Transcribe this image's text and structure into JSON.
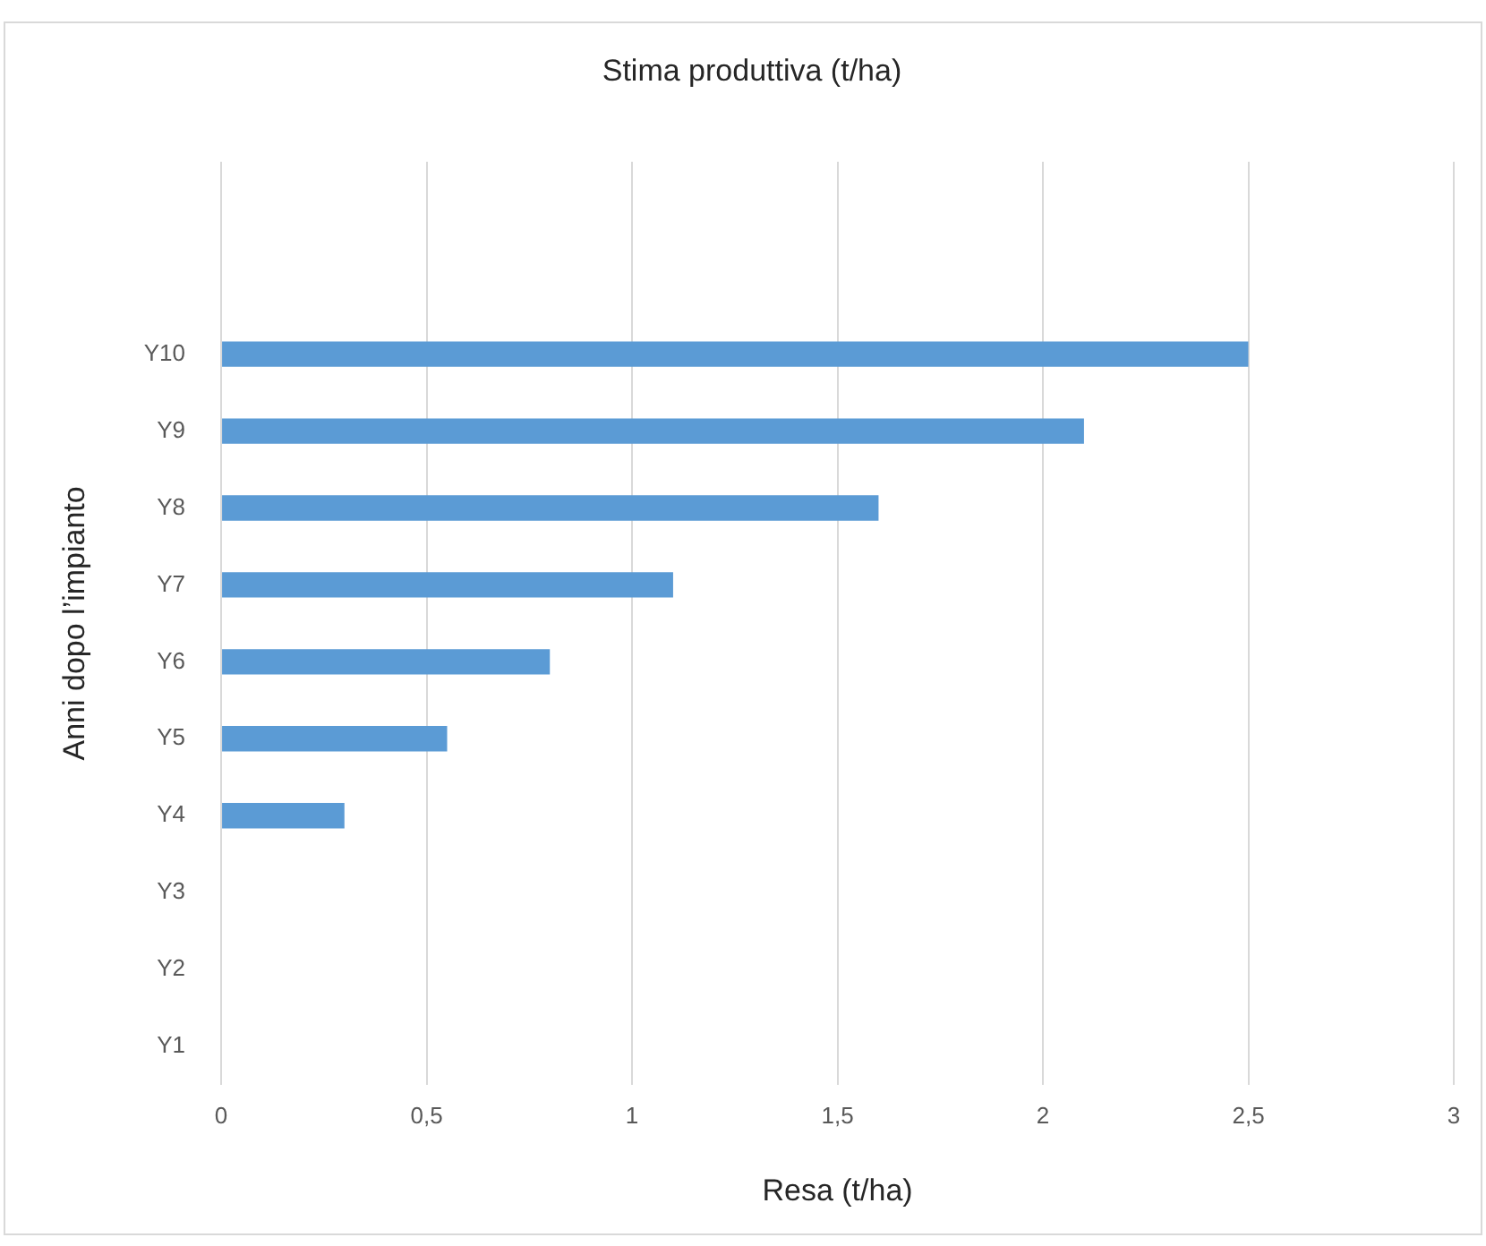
{
  "chart_data": {
    "type": "bar",
    "orientation": "horizontal",
    "title": "Stima produttiva (t/ha)",
    "xlabel": "Resa (t/ha)",
    "ylabel": "Anni dopo l’impianto",
    "categories": [
      null,
      null,
      "Y10",
      "Y9",
      "Y8",
      "Y7",
      "Y6",
      "Y5",
      "Y4",
      "Y3",
      "Y2",
      "Y1"
    ],
    "values": [
      null,
      null,
      2.5,
      2.1,
      1.6,
      1.1,
      0.8,
      0.55,
      0.3,
      0,
      0,
      0
    ],
    "color": "#5b9bd5",
    "xlim": [
      0,
      3
    ],
    "xticks": [
      0,
      {
        "value": 0.5,
        "label": "0,5"
      },
      1,
      {
        "value": 1.5,
        "label": "1,5"
      },
      2,
      {
        "value": 2.5,
        "label": "2,5"
      },
      3
    ],
    "grid": "x",
    "legend": false
  }
}
